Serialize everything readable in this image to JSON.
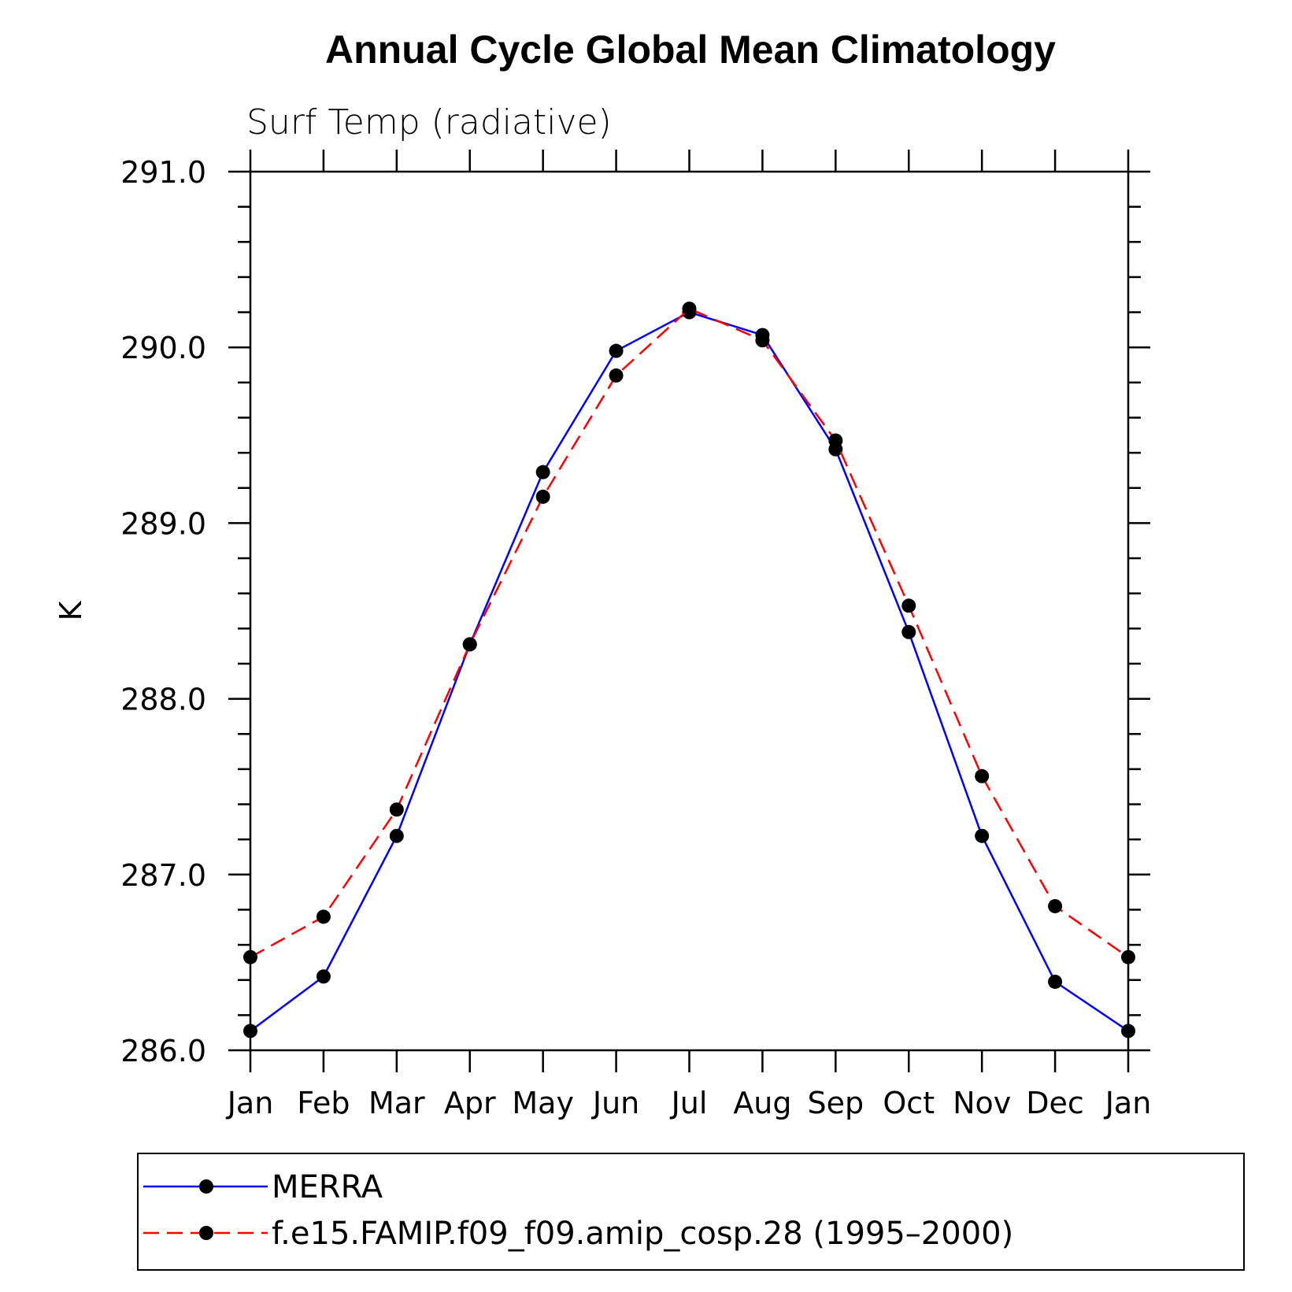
{
  "chart_data": {
    "type": "line",
    "title": "Annual Cycle Global Mean Climatology",
    "subtitle": "Surf Temp (radiative)",
    "xlabel": "",
    "ylabel": "K",
    "categories": [
      "Jan",
      "Feb",
      "Mar",
      "Apr",
      "May",
      "Jun",
      "Jul",
      "Aug",
      "Sep",
      "Oct",
      "Nov",
      "Dec",
      "Jan"
    ],
    "ylim": [
      286.0,
      291.0
    ],
    "yticks": [
      "286.0",
      "287.0",
      "288.0",
      "289.0",
      "290.0",
      "291.0"
    ],
    "grid": false,
    "legend_position": "bottom",
    "series": [
      {
        "name": "MERRA",
        "color": "#0000ff",
        "line_style": "solid",
        "marker": "filled-circle",
        "values": [
          286.11,
          286.42,
          287.22,
          288.31,
          289.29,
          289.98,
          290.2,
          290.07,
          289.42,
          288.38,
          287.22,
          286.39,
          286.11
        ]
      },
      {
        "name": "f.e15.FAMIP.f09_f09.amip_cosp.28 (1995–2000)",
        "color": "#ff0000",
        "line_style": "dashed",
        "marker": "filled-circle",
        "values": [
          286.53,
          286.76,
          287.37,
          288.31,
          289.15,
          289.84,
          290.22,
          290.04,
          289.47,
          288.53,
          287.56,
          286.82,
          286.53
        ]
      }
    ]
  }
}
